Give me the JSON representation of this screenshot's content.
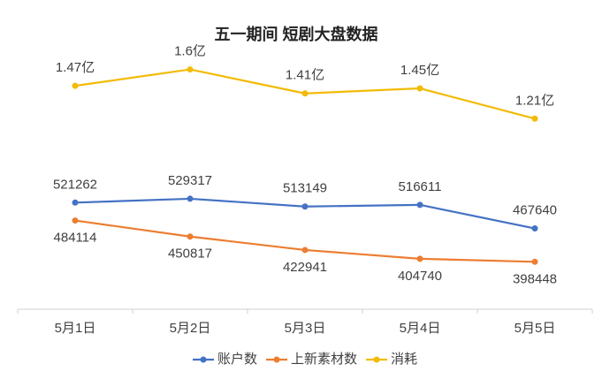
{
  "chart_data": {
    "type": "line",
    "title": "五一期间 短剧大盘数据",
    "categories": [
      "5月1日",
      "5月2日",
      "5月3日",
      "5月4日",
      "5月5日"
    ],
    "series": [
      {
        "name": "账户数",
        "color": "#4472c4",
        "values": [
          521262,
          529317,
          513149,
          516611,
          467640
        ],
        "label_position": "above"
      },
      {
        "name": "上新素材数",
        "color": "#ed7d31",
        "values": [
          484114,
          450817,
          422941,
          404740,
          398448
        ],
        "label_position": "below"
      },
      {
        "name": "消耗",
        "color": "#f2bb05",
        "axis": "y2",
        "values": [
          1.47,
          1.6,
          1.41,
          1.45,
          1.21
        ],
        "value_labels": [
          "1.47亿",
          "1.6亿",
          "1.41亿",
          "1.45亿",
          "1.21亿"
        ],
        "label_position": "above"
      }
    ],
    "ylim": [
      300000,
      850000
    ],
    "y2lim": [
      -0.3,
      1.8
    ],
    "legend": "bottom",
    "grid": false
  }
}
